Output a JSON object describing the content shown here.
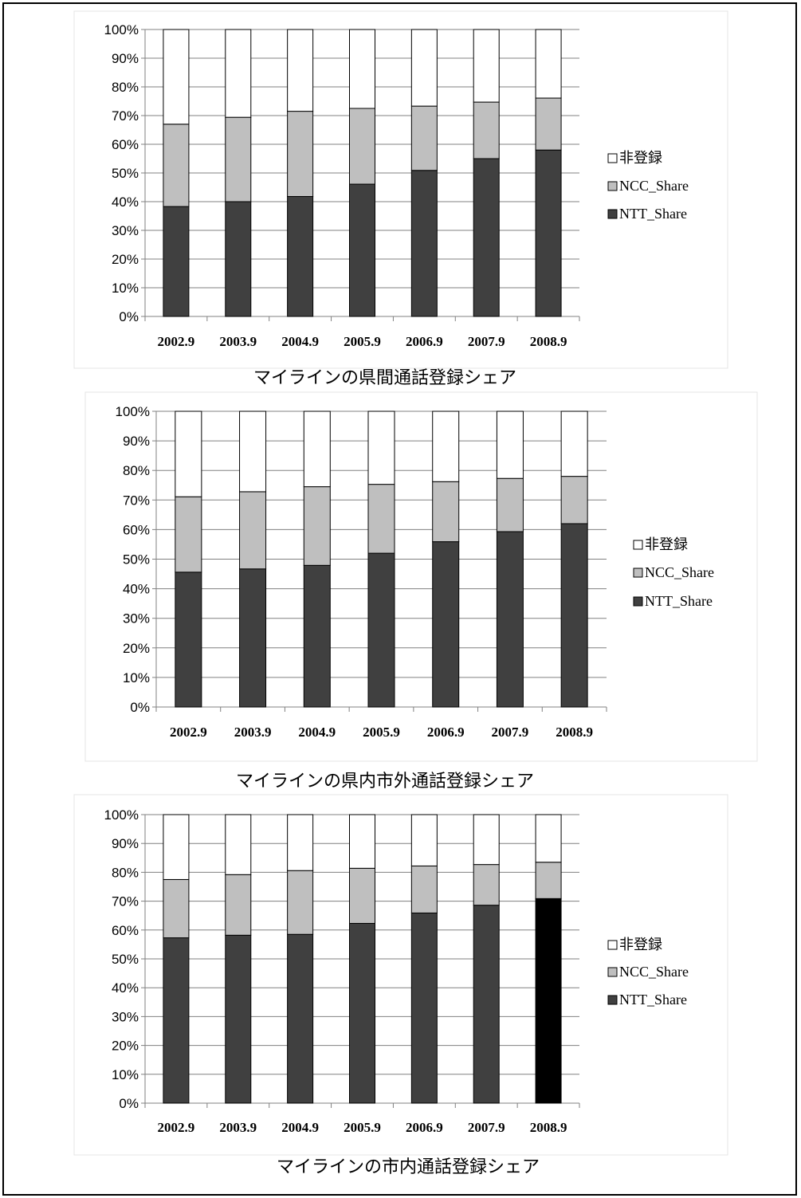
{
  "chart_data": [
    {
      "type": "bar",
      "stacked": true,
      "title": "マイラインの県間通話登録シェア",
      "categories": [
        "2002.9",
        "2003.9",
        "2004.9",
        "2005.9",
        "2006.9",
        "2007.9",
        "2008.9"
      ],
      "series": [
        {
          "name": "NTT_Share",
          "values": [
            38.3,
            40.0,
            41.8,
            46.1,
            50.9,
            55.0,
            58.0
          ]
        },
        {
          "name": "NCC_Share",
          "values": [
            28.7,
            29.4,
            29.7,
            26.4,
            22.4,
            19.7,
            18.1
          ]
        },
        {
          "name": "非登録",
          "values": [
            33.0,
            30.6,
            28.5,
            27.5,
            26.7,
            25.3,
            23.9
          ]
        }
      ],
      "ylim": [
        0,
        100
      ],
      "yticks": [
        "0%",
        "10%",
        "20%",
        "30%",
        "40%",
        "50%",
        "60%",
        "70%",
        "80%",
        "90%",
        "100%"
      ],
      "legend_position": "right",
      "grid": true
    },
    {
      "type": "bar",
      "stacked": true,
      "title": "マイラインの県内市外通話登録シェア",
      "categories": [
        "2002.9",
        "2003.9",
        "2004.9",
        "2005.9",
        "2006.9",
        "2007.9",
        "2008.9"
      ],
      "series": [
        {
          "name": "NTT_Share",
          "values": [
            45.6,
            46.7,
            47.9,
            52.0,
            55.9,
            59.3,
            62.0
          ]
        },
        {
          "name": "NCC_Share",
          "values": [
            25.5,
            26.1,
            26.6,
            23.3,
            20.3,
            18.0,
            16.0
          ]
        },
        {
          "name": "非登録",
          "values": [
            28.9,
            27.2,
            25.5,
            24.7,
            23.8,
            22.7,
            22.0
          ]
        }
      ],
      "ylim": [
        0,
        100
      ],
      "yticks": [
        "0%",
        "10%",
        "20%",
        "30%",
        "40%",
        "50%",
        "60%",
        "70%",
        "80%",
        "90%",
        "100%"
      ],
      "legend_position": "right",
      "grid": true
    },
    {
      "type": "bar",
      "stacked": true,
      "title": "マイラインの市内通話登録シェア",
      "categories": [
        "2002.9",
        "2003.9",
        "2004.9",
        "2005.9",
        "2006.9",
        "2007.9",
        "2008.9"
      ],
      "series": [
        {
          "name": "NTT_Share",
          "values": [
            57.3,
            58.2,
            58.5,
            62.3,
            65.9,
            68.6,
            70.9
          ]
        },
        {
          "name": "NCC_Share",
          "values": [
            20.2,
            21.0,
            22.1,
            19.1,
            16.3,
            14.1,
            12.6
          ]
        },
        {
          "name": "非登録",
          "values": [
            22.5,
            20.8,
            19.4,
            18.6,
            17.8,
            17.3,
            16.5
          ]
        }
      ],
      "ylim": [
        0,
        100
      ],
      "yticks": [
        "0%",
        "10%",
        "20%",
        "30%",
        "40%",
        "50%",
        "60%",
        "70%",
        "80%",
        "90%",
        "100%"
      ],
      "legend_position": "right",
      "grid": true
    }
  ],
  "colors": {
    "NTT_Share": "#404040",
    "NTT_Share_highlight": "#000000",
    "NCC_Share": "#bfbfbf",
    "非登録": "#ffffff",
    "grid": "#808080",
    "border": "#000000"
  }
}
